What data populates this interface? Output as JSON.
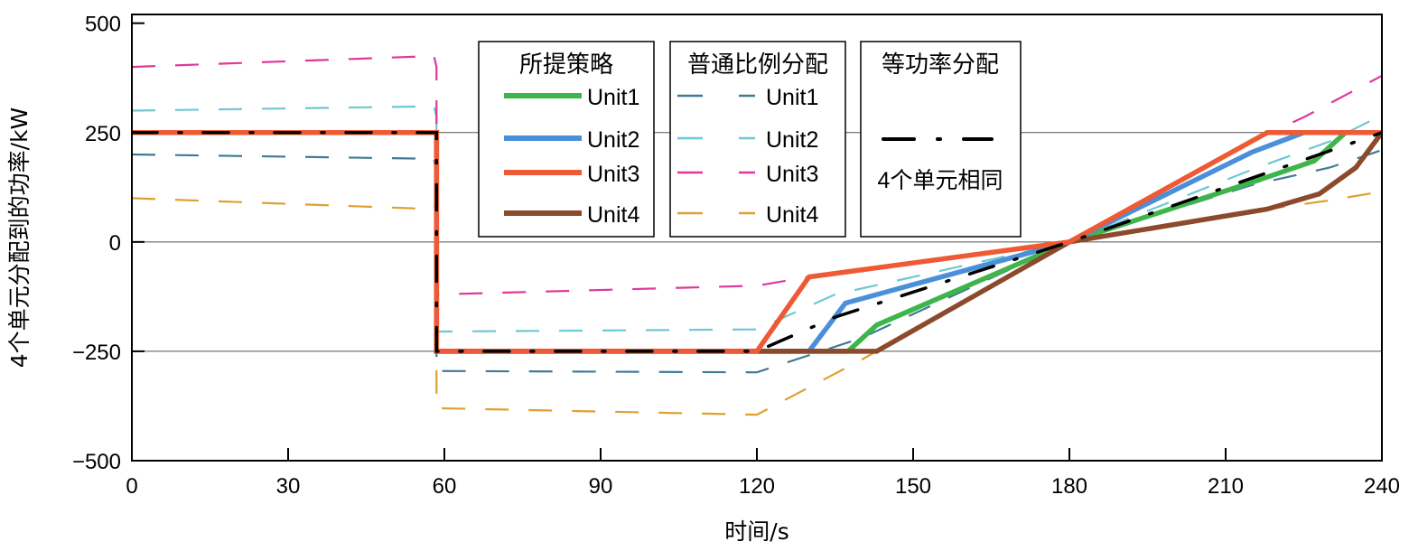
{
  "chart_data": {
    "type": "line",
    "xlabel": "时间/s",
    "ylabel": "4个单元分配到的功率/kW",
    "xlim": [
      0,
      240
    ],
    "ylim": [
      -500,
      520
    ],
    "xticks": [
      0,
      30,
      60,
      90,
      120,
      150,
      180,
      210,
      240
    ],
    "yticks": [
      -500,
      -250,
      0,
      250,
      500
    ],
    "xtick_labels": [
      "0",
      "30",
      "60",
      "90",
      "120",
      "150",
      "180",
      "210",
      "240"
    ],
    "ytick_labels": [
      "−500",
      "−250",
      "0",
      "250",
      "500"
    ],
    "gridlines_y": [
      -250,
      0,
      250
    ],
    "legend": {
      "groups": [
        {
          "title": "所提策略",
          "style": "solid",
          "entries": [
            {
              "label": "Unit1",
              "color": "#3db54a"
            },
            {
              "label": "Unit2",
              "color": "#4a90d9"
            },
            {
              "label": "Unit3",
              "color": "#ee5a35"
            },
            {
              "label": "Unit4",
              "color": "#8b4a2b"
            }
          ]
        },
        {
          "title": "普通比例分配",
          "style": "dashed",
          "entries": [
            {
              "label": "Unit1",
              "color": "#3f7a96"
            },
            {
              "label": "Unit2",
              "color": "#6ec8d2"
            },
            {
              "label": "Unit3",
              "color": "#e0389a"
            },
            {
              "label": "Unit4",
              "color": "#e0a030"
            }
          ]
        },
        {
          "title": "等功率分配",
          "style": "dashdot",
          "entries": [
            {
              "label": "4个单元相同",
              "color": "#000000"
            }
          ]
        }
      ]
    },
    "series": [
      {
        "name": "普通比例分配 Unit1",
        "group": "普通比例分配",
        "style": "dashed",
        "color": "#3f7a96",
        "points": [
          [
            0,
            200
          ],
          [
            58,
            190
          ],
          [
            58.5,
            150
          ],
          [
            58.5,
            -295
          ],
          [
            120,
            -298
          ],
          [
            140,
            -220
          ],
          [
            180,
            0
          ],
          [
            215,
            130
          ],
          [
            230,
            170
          ],
          [
            240,
            210
          ]
        ]
      },
      {
        "name": "普通比例分配 Unit2",
        "group": "普通比例分配",
        "style": "dashed",
        "color": "#6ec8d2",
        "points": [
          [
            0,
            300
          ],
          [
            58,
            310
          ],
          [
            58.5,
            285
          ],
          [
            58.5,
            -205
          ],
          [
            120,
            -200
          ],
          [
            135,
            -120
          ],
          [
            180,
            0
          ],
          [
            215,
            165
          ],
          [
            230,
            230
          ],
          [
            240,
            290
          ]
        ]
      },
      {
        "name": "普通比例分配 Unit3",
        "group": "普通比例分配",
        "style": "dashed",
        "color": "#e0389a",
        "points": [
          [
            0,
            400
          ],
          [
            58,
            425
          ],
          [
            58.5,
            400
          ],
          [
            58.5,
            -120
          ],
          [
            120,
            -100
          ],
          [
            130,
            -80
          ],
          [
            180,
            0
          ],
          [
            215,
            230
          ],
          [
            225,
            285
          ],
          [
            240,
            380
          ]
        ]
      },
      {
        "name": "普通比例分配 Unit4",
        "group": "普通比例分配",
        "style": "dashed",
        "color": "#e0a030",
        "points": [
          [
            0,
            100
          ],
          [
            58,
            75
          ],
          [
            58.5,
            90
          ],
          [
            58.5,
            -330
          ],
          [
            58.5,
            -380
          ],
          [
            120,
            -395
          ],
          [
            140,
            -270
          ],
          [
            180,
            0
          ],
          [
            215,
            70
          ],
          [
            230,
            95
          ],
          [
            240,
            115
          ]
        ]
      },
      {
        "name": "所提策略 Unit1",
        "group": "所提策略",
        "style": "solid",
        "color": "#3db54a",
        "points": [
          [
            0,
            250
          ],
          [
            58.5,
            250
          ],
          [
            58.5,
            -250
          ],
          [
            137.5,
            -250
          ],
          [
            143,
            -190
          ],
          [
            180,
            0
          ],
          [
            216,
            140
          ],
          [
            227,
            185
          ],
          [
            233,
            250
          ],
          [
            240,
            250
          ]
        ]
      },
      {
        "name": "所提策略 Unit2",
        "group": "所提策略",
        "style": "solid",
        "color": "#4a90d9",
        "points": [
          [
            0,
            250
          ],
          [
            58.5,
            250
          ],
          [
            58.5,
            -250
          ],
          [
            130,
            -250
          ],
          [
            137,
            -140
          ],
          [
            180,
            0
          ],
          [
            215,
            205
          ],
          [
            225,
            250
          ],
          [
            240,
            250
          ]
        ]
      },
      {
        "name": "所提策略 Unit4",
        "group": "所提策略",
        "style": "solid",
        "color": "#8b4a2b",
        "points": [
          [
            0,
            250
          ],
          [
            58.5,
            250
          ],
          [
            58.5,
            -250
          ],
          [
            143,
            -250
          ],
          [
            180,
            0
          ],
          [
            218,
            75
          ],
          [
            228,
            110
          ],
          [
            235,
            170
          ],
          [
            240,
            250
          ]
        ]
      },
      {
        "name": "所提策略 Unit3",
        "group": "所提策略",
        "style": "solid",
        "color": "#ee5a35",
        "points": [
          [
            0,
            250
          ],
          [
            58.5,
            250
          ],
          [
            58.5,
            -250
          ],
          [
            120,
            -250
          ],
          [
            130,
            -80
          ],
          [
            180,
            0
          ],
          [
            218,
            250
          ],
          [
            240,
            250
          ]
        ]
      },
      {
        "name": "等功率分配 4个单元相同",
        "group": "等功率分配",
        "style": "dashdot",
        "color": "#000000",
        "points": [
          [
            0,
            250
          ],
          [
            58.5,
            250
          ],
          [
            58.5,
            -250
          ],
          [
            120,
            -250
          ],
          [
            135,
            -172
          ],
          [
            180,
            0
          ],
          [
            240,
            250
          ]
        ]
      }
    ]
  }
}
